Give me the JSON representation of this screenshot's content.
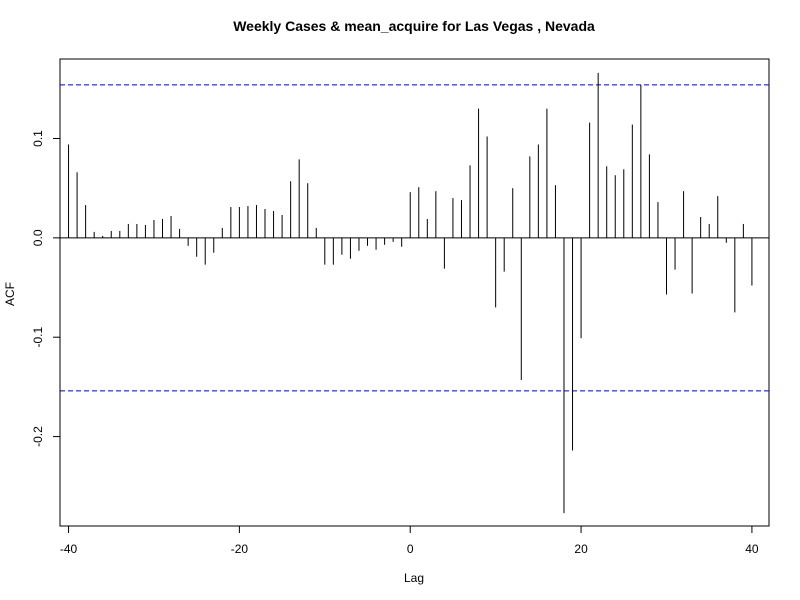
{
  "chart_data": {
    "type": "bar",
    "title": "Weekly Cases & mean_acquire for Las Vegas , Nevada",
    "xlabel": "Lag",
    "ylabel": "ACF",
    "xlim": [
      -41,
      42
    ],
    "ylim": [
      -0.29,
      0.18
    ],
    "x_ticks": [
      -40,
      -20,
      0,
      20,
      40
    ],
    "x_tick_labels": [
      "-40",
      "-20",
      "0",
      "20",
      "40"
    ],
    "y_ticks": [
      -0.2,
      -0.1,
      0.0,
      0.1
    ],
    "y_tick_labels": [
      "-0.2",
      "-0.1",
      "0.0",
      "0.1"
    ],
    "confidence_bound": 0.154,
    "confidence_color": "#0000cc",
    "bar_color": "#000000",
    "grid": false,
    "lags": [
      -40,
      -39,
      -38,
      -37,
      -36,
      -35,
      -34,
      -33,
      -32,
      -31,
      -30,
      -29,
      -28,
      -27,
      -26,
      -25,
      -24,
      -23,
      -22,
      -21,
      -20,
      -19,
      -18,
      -17,
      -16,
      -15,
      -14,
      -13,
      -12,
      -11,
      -10,
      -9,
      -8,
      -7,
      -6,
      -5,
      -4,
      -3,
      -2,
      -1,
      0,
      1,
      2,
      3,
      4,
      5,
      6,
      7,
      8,
      9,
      10,
      11,
      12,
      13,
      14,
      15,
      16,
      17,
      18,
      19,
      20,
      21,
      22,
      23,
      24,
      25,
      26,
      27,
      28,
      29,
      30,
      31,
      32,
      33,
      34,
      35,
      36,
      37,
      38,
      39,
      40
    ],
    "values": [
      0.094,
      0.066,
      0.033,
      0.006,
      0.002,
      0.007,
      0.007,
      0.014,
      0.014,
      0.013,
      0.018,
      0.019,
      0.022,
      0.009,
      -0.008,
      -0.019,
      -0.027,
      -0.015,
      0.01,
      0.031,
      0.031,
      0.032,
      0.033,
      0.029,
      0.027,
      0.023,
      0.057,
      0.079,
      0.055,
      0.01,
      -0.027,
      -0.027,
      -0.017,
      -0.021,
      -0.013,
      -0.008,
      -0.012,
      -0.007,
      -0.004,
      -0.009,
      0.046,
      0.051,
      0.019,
      0.047,
      -0.031,
      0.04,
      0.038,
      0.073,
      0.13,
      0.102,
      -0.07,
      -0.034,
      0.05,
      -0.143,
      0.082,
      0.094,
      0.13,
      0.053,
      -0.277,
      -0.214,
      -0.101,
      0.116,
      0.166,
      0.072,
      0.063,
      0.069,
      0.114,
      0.154,
      0.084,
      0.036,
      -0.057,
      -0.032,
      0.047,
      -0.056,
      0.021,
      0.014,
      0.042,
      -0.005,
      -0.075,
      0.014,
      -0.048
    ]
  }
}
